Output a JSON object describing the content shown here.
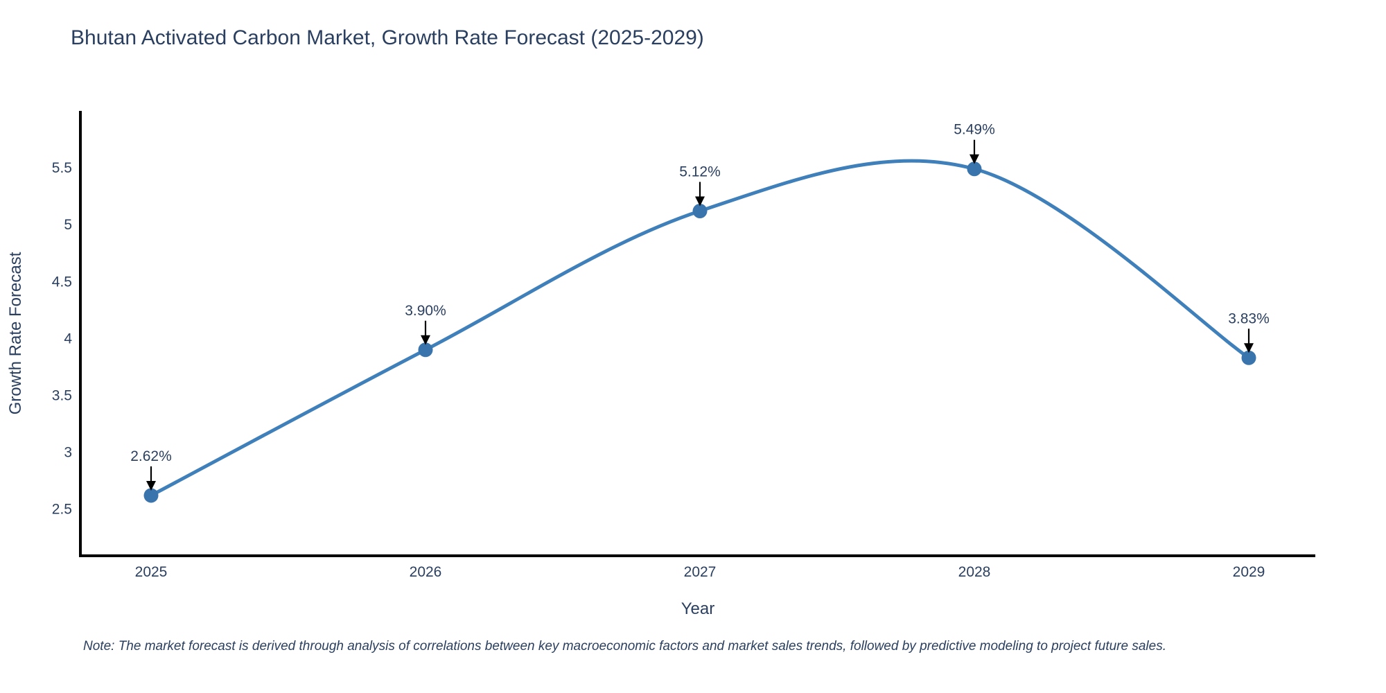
{
  "chart_data": {
    "type": "line",
    "line_shape": "spline",
    "title": "Bhutan Activated Carbon Market, Growth Rate Forecast (2025-2029)",
    "xlabel": "Year",
    "ylabel": "Growth Rate Forecast",
    "categories": [
      "2025",
      "2026",
      "2027",
      "2028",
      "2029"
    ],
    "values": [
      2.62,
      3.9,
      5.12,
      5.49,
      3.83
    ],
    "point_labels": [
      "2.62%",
      "3.90%",
      "5.12%",
      "5.49%",
      "3.83%"
    ],
    "y_ticks": [
      2.5,
      3,
      3.5,
      4,
      4.5,
      5,
      5.5
    ],
    "ylim": [
      2.09,
      6.0
    ],
    "grid": false,
    "legend_position": "none",
    "annotation_style": "label-above-with-down-arrow",
    "colors": {
      "line": "#4080ba",
      "marker": "#3a74ac",
      "axis": "#000000",
      "text": "#2a3f5f",
      "annotation_arrow": "#000000"
    }
  },
  "note": "Note: The market forecast is derived through analysis of correlations between key macroeconomic factors and market sales trends, followed by predictive modeling to project future sales."
}
